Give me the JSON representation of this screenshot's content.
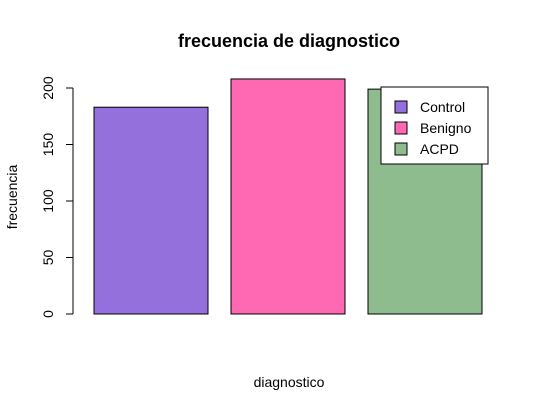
{
  "chart_data": {
    "type": "bar",
    "title": "frecuencia de diagnostico",
    "xlabel": "diagnostico",
    "ylabel": "frecuencia",
    "categories": [
      "Control",
      "Benigno",
      "ACPD"
    ],
    "values": [
      183,
      208,
      199
    ],
    "colors": [
      "#9370DB",
      "#FF69B4",
      "#8FBC8F"
    ],
    "ylim": [
      0,
      208
    ],
    "yticks": [
      0,
      50,
      100,
      150,
      200
    ],
    "grid": false,
    "legend": {
      "position": "top-right",
      "entries": [
        "Control",
        "Benigno",
        "ACPD"
      ]
    }
  }
}
